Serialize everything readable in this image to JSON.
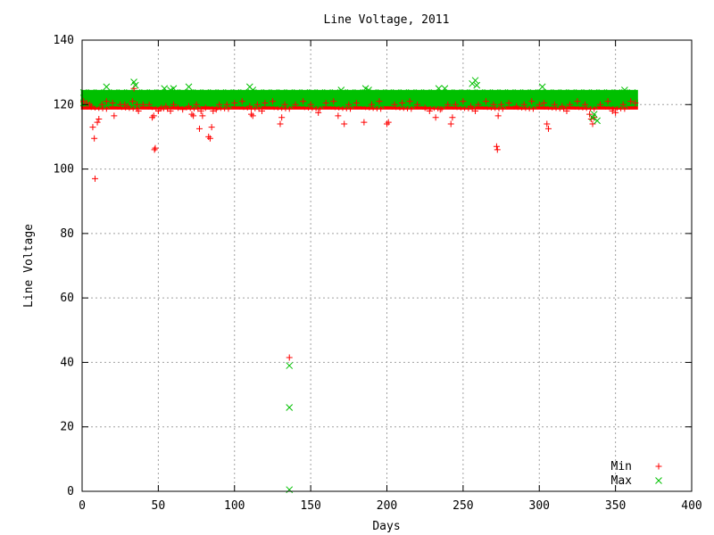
{
  "chart_data": {
    "type": "scatter",
    "title": "Line Voltage, 2011",
    "xlabel": "Days",
    "ylabel": "Line Voltage",
    "xlim": [
      0,
      400
    ],
    "ylim": [
      0,
      140
    ],
    "x_ticks": [
      0,
      50,
      100,
      150,
      200,
      250,
      300,
      350,
      400
    ],
    "y_ticks": [
      0,
      20,
      40,
      60,
      80,
      100,
      120,
      140
    ],
    "grid": true,
    "legend_position": "bottom-right",
    "series": [
      {
        "name": "Min",
        "color": "#ff0000",
        "marker": "plus",
        "points": [
          [
            1,
            121
          ],
          [
            3,
            120.5
          ],
          [
            5,
            120
          ],
          [
            6,
            119.5
          ],
          [
            7,
            113
          ],
          [
            8,
            109.5
          ],
          [
            8.5,
            97
          ],
          [
            10,
            114.5
          ],
          [
            11,
            115.5
          ],
          [
            13,
            120
          ],
          [
            16,
            121
          ],
          [
            20,
            120.5
          ],
          [
            21,
            116.5
          ],
          [
            25,
            120
          ],
          [
            28,
            120
          ],
          [
            30,
            119.5
          ],
          [
            33,
            121
          ],
          [
            34,
            125
          ],
          [
            36,
            120
          ],
          [
            37,
            118
          ],
          [
            40,
            120
          ],
          [
            44,
            120
          ],
          [
            46,
            116
          ],
          [
            47,
            116.5
          ],
          [
            47.5,
            106
          ],
          [
            48,
            106.5
          ],
          [
            50,
            118
          ],
          [
            52,
            119
          ],
          [
            55,
            119.5
          ],
          [
            58,
            118
          ],
          [
            60,
            120
          ],
          [
            63,
            119
          ],
          [
            66,
            118.5
          ],
          [
            70,
            119.5
          ],
          [
            72,
            117
          ],
          [
            73,
            116.5
          ],
          [
            75,
            120
          ],
          [
            77,
            112.5
          ],
          [
            78,
            118
          ],
          [
            79,
            116.5
          ],
          [
            81,
            119
          ],
          [
            83,
            110
          ],
          [
            84,
            109.5
          ],
          [
            85,
            113
          ],
          [
            86,
            118
          ],
          [
            88,
            118.5
          ],
          [
            90,
            120
          ],
          [
            95,
            120
          ],
          [
            100,
            120.5
          ],
          [
            105,
            121
          ],
          [
            110,
            119.5
          ],
          [
            111,
            117
          ],
          [
            112,
            116.5
          ],
          [
            115,
            120
          ],
          [
            118,
            118
          ],
          [
            120,
            120.5
          ],
          [
            125,
            121
          ],
          [
            130,
            114
          ],
          [
            131,
            116
          ],
          [
            133,
            120
          ],
          [
            136,
            41.5
          ],
          [
            140,
            120
          ],
          [
            145,
            121
          ],
          [
            150,
            120
          ],
          [
            155,
            117.5
          ],
          [
            160,
            120.5
          ],
          [
            165,
            121
          ],
          [
            168,
            116.5
          ],
          [
            172,
            114
          ],
          [
            175,
            120
          ],
          [
            180,
            120.5
          ],
          [
            185,
            114.5
          ],
          [
            190,
            120
          ],
          [
            195,
            121
          ],
          [
            200,
            114
          ],
          [
            201,
            114.5
          ],
          [
            205,
            120
          ],
          [
            210,
            120.5
          ],
          [
            215,
            121
          ],
          [
            220,
            120
          ],
          [
            225,
            119
          ],
          [
            228,
            118
          ],
          [
            232,
            116
          ],
          [
            235,
            118.5
          ],
          [
            240,
            120
          ],
          [
            242,
            114
          ],
          [
            243,
            116
          ],
          [
            245,
            120
          ],
          [
            250,
            121
          ],
          [
            255,
            119.5
          ],
          [
            258,
            118
          ],
          [
            260,
            120
          ],
          [
            265,
            121
          ],
          [
            270,
            120
          ],
          [
            272,
            107
          ],
          [
            272.5,
            106
          ],
          [
            273,
            116.5
          ],
          [
            275,
            120
          ],
          [
            280,
            120.5
          ],
          [
            285,
            119.5
          ],
          [
            290,
            120
          ],
          [
            295,
            121
          ],
          [
            300,
            120
          ],
          [
            303,
            120.5
          ],
          [
            305,
            114
          ],
          [
            306,
            112.5
          ],
          [
            310,
            120
          ],
          [
            315,
            119.5
          ],
          [
            318,
            118
          ],
          [
            320,
            120
          ],
          [
            325,
            121
          ],
          [
            330,
            120
          ],
          [
            333,
            117
          ],
          [
            334,
            115.5
          ],
          [
            335,
            114
          ],
          [
            336,
            116
          ],
          [
            340,
            120
          ],
          [
            345,
            121
          ],
          [
            348,
            118
          ],
          [
            350,
            117.5
          ],
          [
            355,
            120
          ],
          [
            360,
            121
          ],
          [
            363,
            120.5
          ]
        ]
      },
      {
        "name": "Max",
        "color": "#00c000",
        "marker": "cross",
        "points": [
          [
            16,
            125.5
          ],
          [
            34,
            127
          ],
          [
            35,
            126
          ],
          [
            54,
            125
          ],
          [
            58,
            124.5
          ],
          [
            60,
            125
          ],
          [
            70,
            125.5
          ],
          [
            110,
            125.5
          ],
          [
            112,
            124.5
          ],
          [
            136,
            39
          ],
          [
            136,
            26
          ],
          [
            136,
            0.5
          ],
          [
            170,
            124.5
          ],
          [
            186,
            125
          ],
          [
            188,
            124.5
          ],
          [
            234,
            125
          ],
          [
            238,
            125
          ],
          [
            256,
            126.5
          ],
          [
            258,
            127.5
          ],
          [
            259,
            126
          ],
          [
            302,
            125.5
          ],
          [
            335,
            116
          ],
          [
            336,
            117
          ],
          [
            338,
            115
          ],
          [
            356,
            124.5
          ]
        ]
      }
    ],
    "dense_bands": [
      {
        "series": "Min",
        "x_range": [
          1,
          363
        ],
        "y_range": [
          119,
          121
        ]
      },
      {
        "series": "Max",
        "x_range": [
          1,
          363
        ],
        "y_range": [
          120,
          124
        ]
      }
    ]
  }
}
